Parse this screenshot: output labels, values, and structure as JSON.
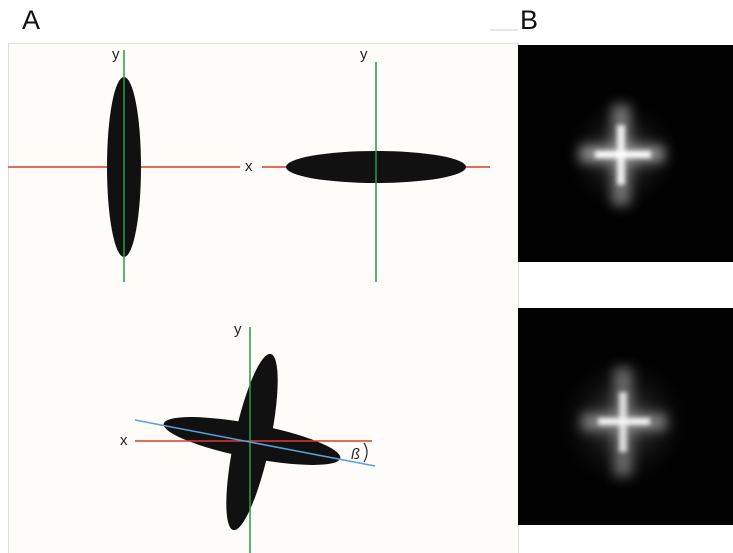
{
  "panel_a": {
    "label": "A",
    "top_left": {
      "y_label": "y",
      "x_label": "x"
    },
    "top_right": {
      "y_label": "y"
    },
    "bottom": {
      "y_label": "y",
      "x_label": "x",
      "angle_label": "ß"
    }
  },
  "panel_b": {
    "label": "B"
  }
}
